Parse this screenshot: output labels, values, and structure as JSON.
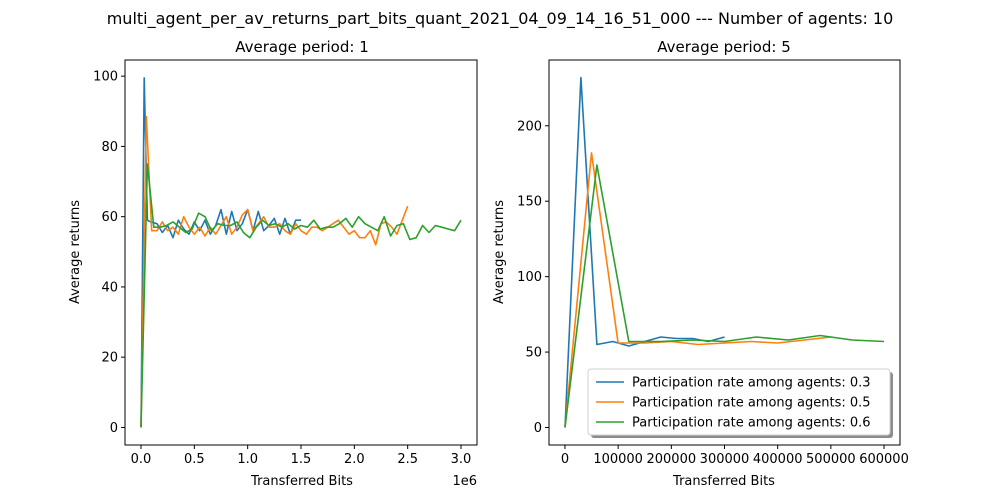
{
  "figure": {
    "suptitle": "multi_agent_per_av_returns_part_bits_quant_2021_04_09_14_16_51_000 --- Number of agents: 10"
  },
  "series_colors": [
    "#1f77b4",
    "#ff7f0e",
    "#2ca02c"
  ],
  "chart_data": [
    {
      "type": "line",
      "title": "Average period: 1",
      "xlabel": "Transferred Bits",
      "ylabel": "Average returns",
      "x_offset_label": "1e6",
      "xlim": [
        -0.15,
        3.15
      ],
      "ylim": [
        -5,
        104.6
      ],
      "xticks": [
        0.0,
        0.5,
        1.0,
        1.5,
        2.0,
        2.5,
        3.0
      ],
      "xtick_labels": [
        "0.0",
        "0.5",
        "1.0",
        "1.5",
        "2.0",
        "2.5",
        "3.0"
      ],
      "yticks": [
        0,
        20,
        40,
        60,
        80,
        100
      ],
      "ytick_labels": [
        "0",
        "20",
        "40",
        "60",
        "80",
        "100"
      ],
      "grid": false,
      "series": [
        {
          "x": [
            0.0,
            0.03,
            0.06,
            0.09,
            0.15,
            0.2,
            0.25,
            0.3,
            0.35,
            0.4,
            0.45,
            0.5,
            0.55,
            0.6,
            0.65,
            0.7,
            0.75,
            0.8,
            0.85,
            0.9,
            0.95,
            1.0,
            1.05,
            1.1,
            1.15,
            1.2,
            1.25,
            1.3,
            1.35,
            1.4,
            1.45,
            1.5
          ],
          "y": [
            0,
            99.5,
            59,
            58.5,
            58,
            55.5,
            57.5,
            54,
            59,
            56.5,
            55,
            58.5,
            56,
            59,
            55,
            57.5,
            62,
            55,
            61.5,
            56,
            58,
            62,
            56,
            61.5,
            56,
            57.5,
            59.5,
            55,
            59.5,
            55,
            59,
            59
          ]
        },
        {
          "x": [
            0.0,
            0.05,
            0.1,
            0.15,
            0.2,
            0.25,
            0.3,
            0.35,
            0.4,
            0.45,
            0.5,
            0.55,
            0.6,
            0.65,
            0.7,
            0.75,
            0.8,
            0.85,
            0.9,
            0.95,
            1.0,
            1.05,
            1.1,
            1.15,
            1.2,
            1.25,
            1.3,
            1.35,
            1.4,
            1.45,
            1.5,
            1.55,
            1.6,
            1.65,
            1.7,
            1.75,
            1.8,
            1.85,
            1.9,
            1.95,
            2.0,
            2.05,
            2.1,
            2.15,
            2.2,
            2.25,
            2.3,
            2.35,
            2.4,
            2.45,
            2.5
          ],
          "y": [
            0,
            88.5,
            56,
            56,
            58.5,
            56,
            57,
            55,
            60,
            57,
            55,
            57,
            54.5,
            57,
            55,
            57.5,
            60,
            55,
            57,
            60.5,
            62,
            56,
            58,
            60,
            57,
            57,
            58,
            56,
            55,
            58,
            56,
            55,
            57,
            57,
            56,
            57,
            58,
            59,
            57,
            55,
            56,
            54,
            54,
            56,
            52,
            58,
            58.5,
            57,
            55,
            59,
            63
          ]
        },
        {
          "x": [
            0.0,
            0.06,
            0.12,
            0.18,
            0.24,
            0.3,
            0.36,
            0.42,
            0.48,
            0.54,
            0.6,
            0.66,
            0.72,
            0.78,
            0.84,
            0.9,
            0.96,
            1.02,
            1.08,
            1.14,
            1.2,
            1.26,
            1.32,
            1.38,
            1.44,
            1.5,
            1.56,
            1.62,
            1.68,
            1.74,
            1.8,
            1.86,
            1.92,
            1.98,
            2.04,
            2.1,
            2.16,
            2.22,
            2.28,
            2.34,
            2.4,
            2.46,
            2.52,
            2.58,
            2.64,
            2.7,
            2.76,
            2.82,
            2.88,
            2.94,
            3.0
          ],
          "y": [
            0,
            75,
            57,
            57,
            57.5,
            58.5,
            57,
            55.5,
            56.5,
            61,
            60,
            56,
            58,
            57.5,
            57.5,
            58.5,
            55.5,
            54,
            57,
            59,
            57.5,
            58,
            57,
            58,
            56.5,
            57.5,
            57,
            59,
            56.5,
            57,
            57,
            58,
            59.5,
            57,
            60,
            58,
            57,
            56,
            60,
            54.5,
            57.5,
            58,
            53.5,
            54,
            57.5,
            55.5,
            57.5,
            57,
            56.5,
            56,
            59
          ]
        }
      ]
    },
    {
      "type": "line",
      "title": "Average period: 5",
      "xlabel": "Transferred Bits",
      "ylabel": "Average returns",
      "xlim": [
        -30000,
        630000
      ],
      "ylim": [
        -11.6,
        243.6
      ],
      "xticks": [
        0,
        100000,
        200000,
        300000,
        400000,
        500000,
        600000
      ],
      "xtick_labels": [
        "0",
        "100000",
        "200000",
        "300000",
        "400000",
        "500000",
        "600000"
      ],
      "yticks": [
        0,
        50,
        100,
        150,
        200
      ],
      "ytick_labels": [
        "0",
        "50",
        "100",
        "150",
        "200"
      ],
      "grid": false,
      "legend": {
        "location": "lower-right",
        "entries": [
          "Participation rate among agents: 0.3",
          "Participation rate among agents: 0.5",
          "Participation rate among agents: 0.6"
        ]
      },
      "series": [
        {
          "name": "Participation rate among agents: 0.3",
          "x": [
            0,
            30000,
            60000,
            90000,
            120000,
            150000,
            180000,
            210000,
            240000,
            270000,
            300000
          ],
          "y": [
            0,
            232,
            55,
            57,
            54,
            57,
            60,
            59,
            59,
            57,
            60
          ]
        },
        {
          "name": "Participation rate among agents: 0.5",
          "x": [
            0,
            50000,
            100000,
            150000,
            200000,
            250000,
            300000,
            350000,
            400000,
            450000,
            500000
          ],
          "y": [
            0,
            182,
            56,
            56,
            57,
            55,
            56,
            57,
            56,
            58,
            60
          ]
        },
        {
          "name": "Participation rate among agents: 0.6",
          "x": [
            0,
            60000,
            120000,
            180000,
            240000,
            300000,
            360000,
            420000,
            480000,
            540000,
            600000
          ],
          "y": [
            0,
            174,
            57,
            57,
            58,
            57,
            60,
            58,
            61,
            58,
            57
          ]
        }
      ]
    }
  ]
}
